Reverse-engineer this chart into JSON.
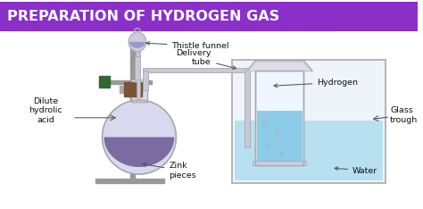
{
  "title": "PREPARATION OF HYDROGEN GAS",
  "title_bg_color": "#8B2FC9",
  "title_text_color": "#FFFFFF",
  "bg_color": "#FFFFFF",
  "labels": {
    "thistle_funnel": "Thistle funnel",
    "delivery_tube": "Delivery\ntube",
    "hydrogen": "Hydrogen",
    "dilute_acid": "Dilute\nhydrolic\nacid",
    "zinc": "Zink\npieces",
    "glass_trough": "Glass\ntrough",
    "water": "Water"
  },
  "light_blue": "#B8E0F0",
  "mid_blue": "#8DCCE8",
  "flask_liquid_color": "#7B6BA0",
  "flask_color": "#D8D8EE",
  "stand_color": "#999999",
  "clamp_color": "#336633",
  "stopper_color": "#7A5533",
  "funnel_color": "#C0C0D8",
  "tube_color": "#C8C8D8",
  "arrow_color": "#444444",
  "trough_wall_color": "#BBCCDD"
}
